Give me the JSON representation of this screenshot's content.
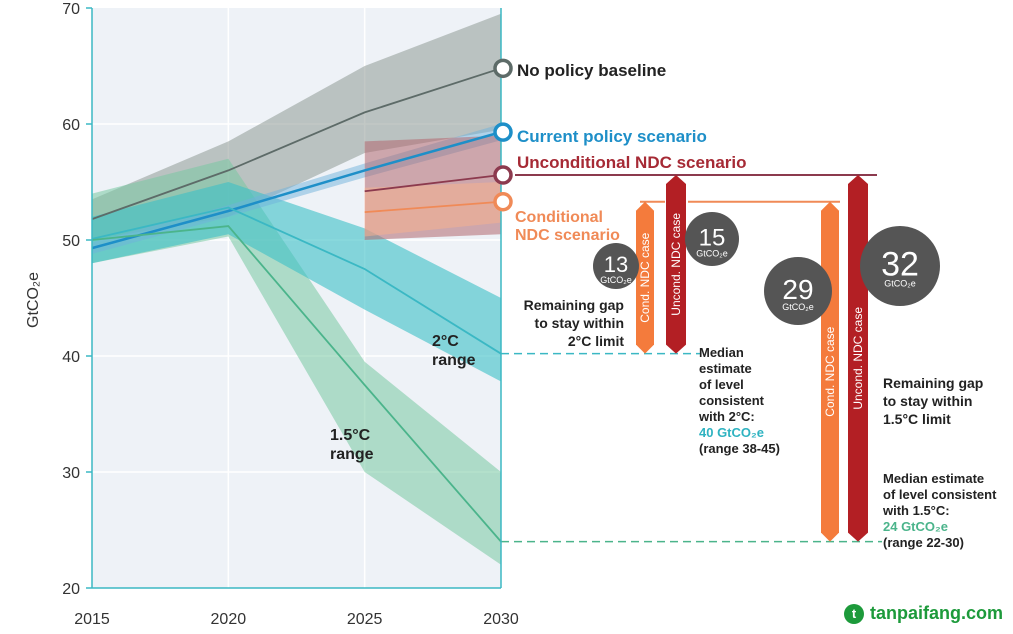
{
  "chart_data": {
    "type": "line",
    "ylabel": "GtCO₂e",
    "xlim": [
      2015,
      2030
    ],
    "ylim": [
      20,
      70
    ],
    "x_ticks": [
      "2015",
      "2020",
      "2025",
      "2030"
    ],
    "y_ticks": [
      "20",
      "30",
      "40",
      "50",
      "60",
      "70"
    ],
    "series": [
      {
        "key": "baseline",
        "name": "No policy baseline",
        "color": "#5d6b68",
        "x": [
          2015,
          2020,
          2025,
          2030
        ],
        "y": [
          51.8,
          56,
          61,
          64.8
        ],
        "band_upper": [
          53.5,
          58.5,
          65,
          69.5
        ],
        "band_lower": [
          50,
          52,
          57.5,
          59.5
        ]
      },
      {
        "key": "current",
        "name": "Current policy scenario",
        "color": "#1e8fc8",
        "x": [
          2015,
          2020,
          2025,
          2030
        ],
        "y": [
          49.3,
          52.5,
          56,
          59.3
        ],
        "band_upper": [
          49.8,
          53,
          56.6,
          60
        ],
        "band_lower": [
          48.8,
          52,
          55.4,
          58.6
        ]
      },
      {
        "key": "two_c",
        "name": "2°C range",
        "color": "#3bb8c4",
        "x": [
          2015,
          2020,
          2025,
          2030
        ],
        "y": [
          50.1,
          52.8,
          47.5,
          40.2
        ],
        "band_upper": [
          52,
          55,
          51,
          45
        ],
        "band_lower": [
          48,
          50.5,
          44,
          37.8
        ]
      },
      {
        "key": "one_five_c",
        "name": "1.5°C range",
        "color": "#4bb48b",
        "x": [
          2015,
          2020,
          2025,
          2030
        ],
        "y": [
          50,
          51.2,
          37.5,
          24
        ],
        "band_upper": [
          54,
          57,
          39.5,
          30
        ],
        "band_lower": [
          48,
          50.3,
          30,
          22
        ]
      },
      {
        "key": "uncond",
        "name": "Unconditional NDC scenario",
        "color": "#8c3a4e",
        "x": [
          2025,
          2030
        ],
        "y": [
          54.2,
          55.6
        ],
        "band_upper": [
          58.5,
          59
        ],
        "band_lower": [
          50,
          50.5
        ]
      },
      {
        "key": "cond",
        "name": "Conditional NDC scenario",
        "color": "#f08a57",
        "x": [
          2025,
          2030
        ],
        "y": [
          52.4,
          53.3
        ],
        "band_upper": [
          54.5,
          55
        ],
        "band_lower": [
          50.3,
          51.5
        ]
      }
    ],
    "gaps": [
      {
        "case": "Cond. NDC case",
        "value": "13",
        "from": 53.3,
        "to": 40.2,
        "color": "#f47b3c"
      },
      {
        "case": "Uncond. NDC case",
        "value": "15",
        "from": 55.6,
        "to": 40.2,
        "color": "#b31f24"
      },
      {
        "case": "Cond. NDC case",
        "value": "29",
        "from": 53.3,
        "to": 24,
        "color": "#f47b3c"
      },
      {
        "case": "Uncond. NDC case",
        "value": "32",
        "from": 55.6,
        "to": 24,
        "color": "#b31f24"
      }
    ],
    "bubble_unit": "GtCO₂e",
    "annotations": {
      "two_c_range_l1": "2°C",
      "two_c_range_l2": "range",
      "one_five_range_l1": "1.5°C",
      "one_five_range_l2": "range",
      "cond_label_l1": "Conditional",
      "cond_label_l2": "NDC scenario",
      "gap2_l1": "Remaining gap",
      "gap2_l2": "to stay within",
      "gap2_l3": "2°C limit",
      "gap15_l1": "Remaining gap",
      "gap15_l2": "to stay within",
      "gap15_l3": "1.5°C limit",
      "median2_l1": "Median",
      "median2_l2": "estimate",
      "median2_l3": "of level",
      "median2_l4": "consistent",
      "median2_l5": "with 2°C:",
      "median2_value": "40 GtCO₂e",
      "median2_range": "(range 38-45)",
      "median15_l1": "Median estimate",
      "median15_l2": "of level consistent",
      "median15_l3": "with 1.5°C:",
      "median15_value": "24 GtCO₂e",
      "median15_range": "(range 22-30)"
    }
  },
  "watermark": {
    "logo": "t",
    "text": "tanpaifang.com"
  }
}
